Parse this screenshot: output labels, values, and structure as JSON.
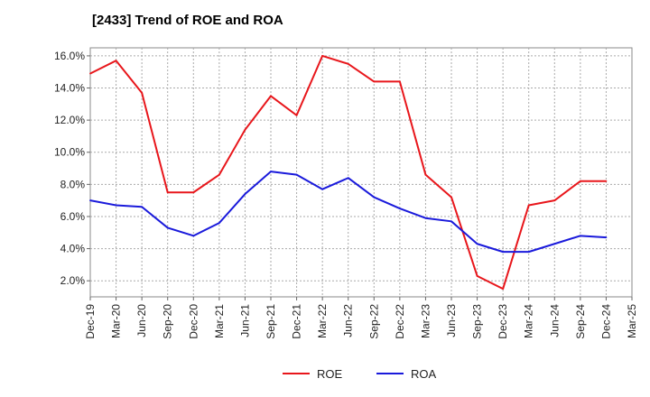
{
  "chart_data": {
    "type": "line",
    "title": "[2433]  Trend of ROE and ROA",
    "xlabel": "",
    "ylabel": "",
    "categories": [
      "Dec-19",
      "Mar-20",
      "Jun-20",
      "Sep-20",
      "Dec-20",
      "Mar-21",
      "Jun-21",
      "Sep-21",
      "Dec-21",
      "Mar-22",
      "Jun-22",
      "Sep-22",
      "Dec-22",
      "Mar-23",
      "Jun-23",
      "Sep-23",
      "Dec-23",
      "Mar-24",
      "Jun-24",
      "Sep-24",
      "Dec-24",
      "Mar-25"
    ],
    "ylim": [
      1.0,
      16.5
    ],
    "yticks": [
      2.0,
      4.0,
      6.0,
      8.0,
      10.0,
      12.0,
      14.0,
      16.0
    ],
    "ytick_labels": [
      "2.0%",
      "4.0%",
      "6.0%",
      "8.0%",
      "10.0%",
      "12.0%",
      "14.0%",
      "16.0%"
    ],
    "grid": true,
    "legend_position": "bottom-center",
    "series": [
      {
        "name": "ROE",
        "color": "#e8161b",
        "values": [
          14.9,
          15.7,
          13.7,
          7.5,
          7.5,
          8.6,
          11.4,
          13.5,
          12.3,
          16.0,
          15.5,
          14.4,
          14.4,
          8.6,
          7.2,
          2.3,
          1.5,
          6.7,
          7.0,
          8.2,
          8.2,
          null
        ]
      },
      {
        "name": "ROA",
        "color": "#1a1adb",
        "values": [
          7.0,
          6.7,
          6.6,
          5.3,
          4.8,
          5.6,
          7.4,
          8.8,
          8.6,
          7.7,
          8.4,
          7.2,
          6.5,
          5.9,
          5.7,
          4.3,
          3.8,
          3.8,
          4.3,
          4.8,
          4.7,
          null
        ]
      }
    ]
  }
}
